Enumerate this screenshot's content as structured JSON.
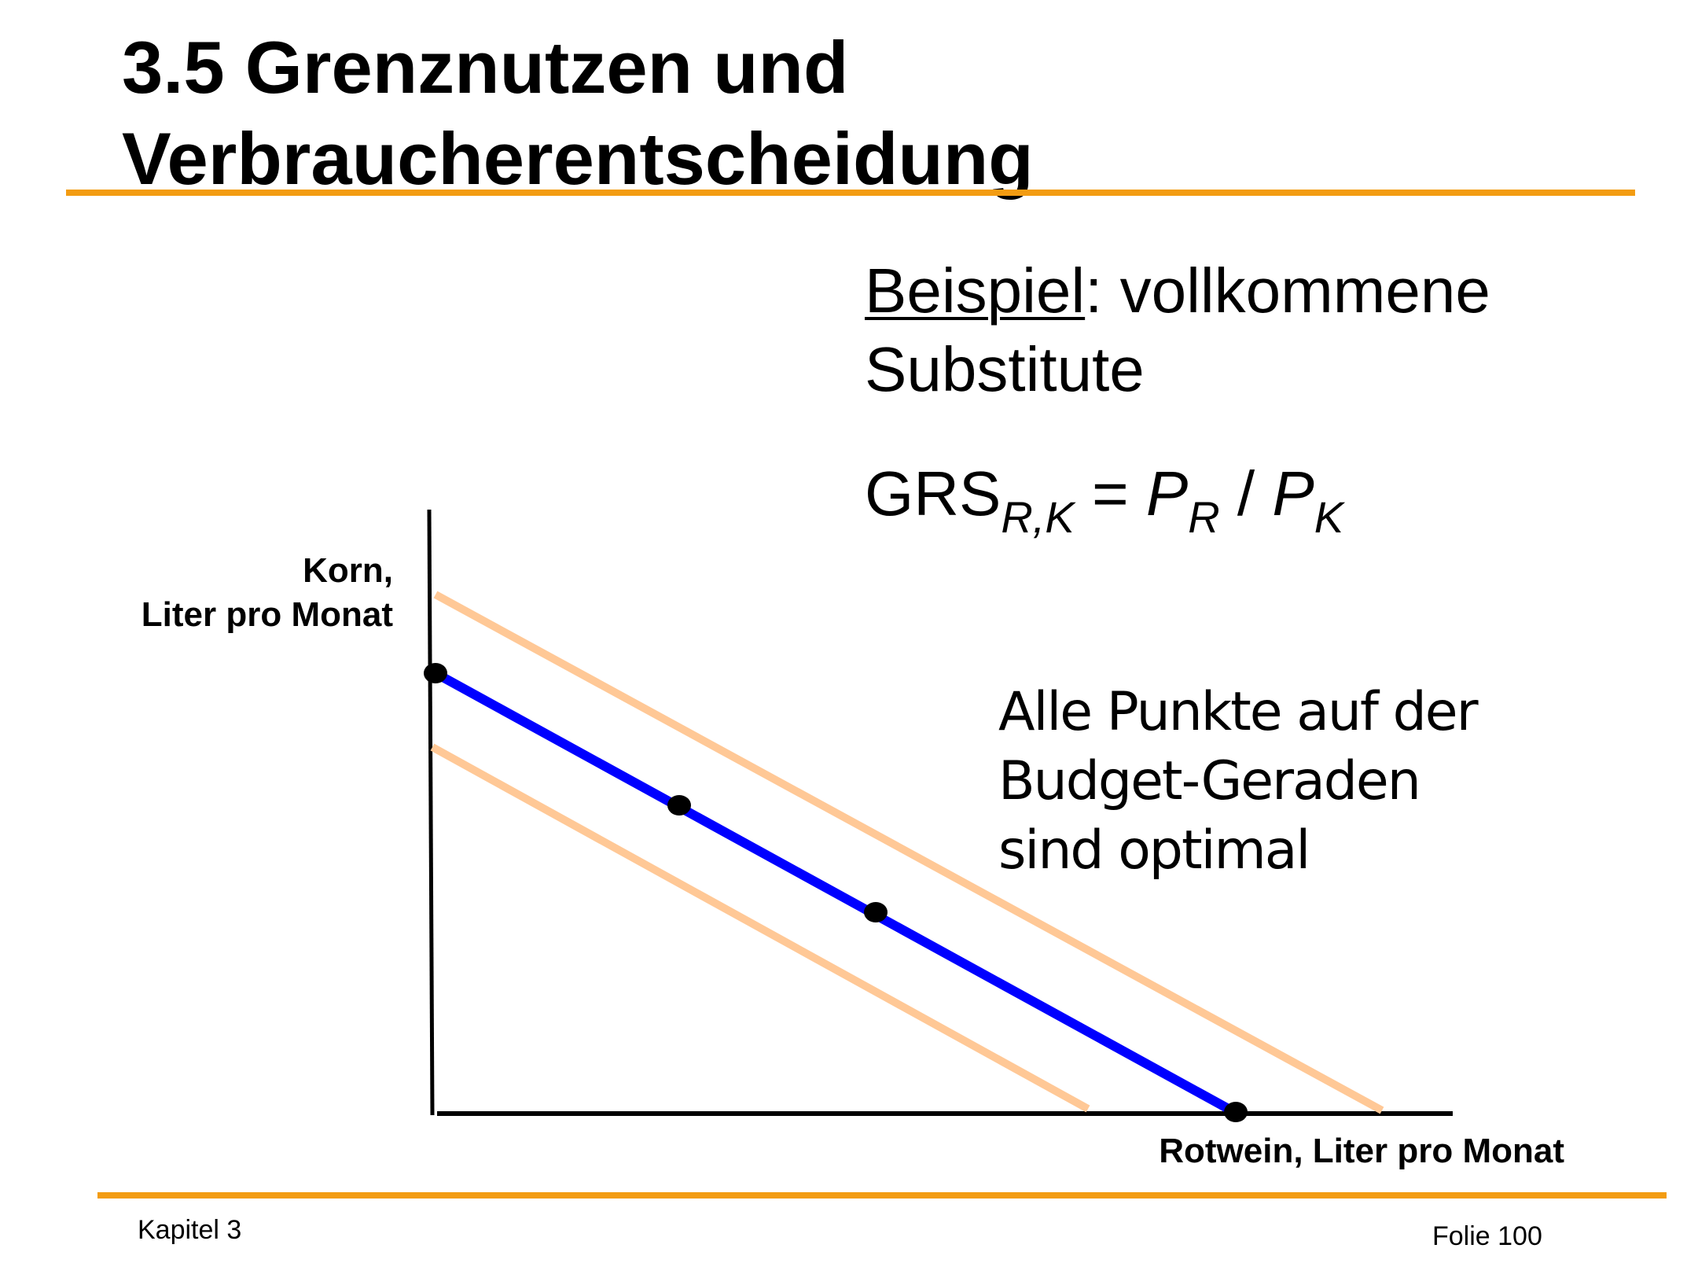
{
  "slide": {
    "title_line1": "3.5 Grenznutzen und",
    "title_line2": "Verbraucherentscheidung",
    "accent_color": "#f39c12",
    "footer_left": "Kapitel 3",
    "footer_right": "Folie 100"
  },
  "example": {
    "label": "Beispiel",
    "colon_text": ": vollkommene",
    "line2": "Substitute"
  },
  "formula": {
    "grs": "GRS",
    "grs_sub": "R,K",
    "equals": " = ",
    "p1": "P",
    "p1_sub": "R",
    "slash": " / ",
    "p2": "P",
    "p2_sub": "K"
  },
  "diagram": {
    "y_axis_label_line1": "Korn,",
    "y_axis_label_line2": "Liter pro Monat",
    "x_axis_label": "Rotwein, Liter pro Monat",
    "note_line1": "Alle Punkte auf der",
    "note_line2": "Budget-Geraden",
    "note_line3": "sind optimal",
    "budget_line_color": "#0000ff",
    "indifference_color": "#ffc896",
    "point_color": "#000000"
  }
}
